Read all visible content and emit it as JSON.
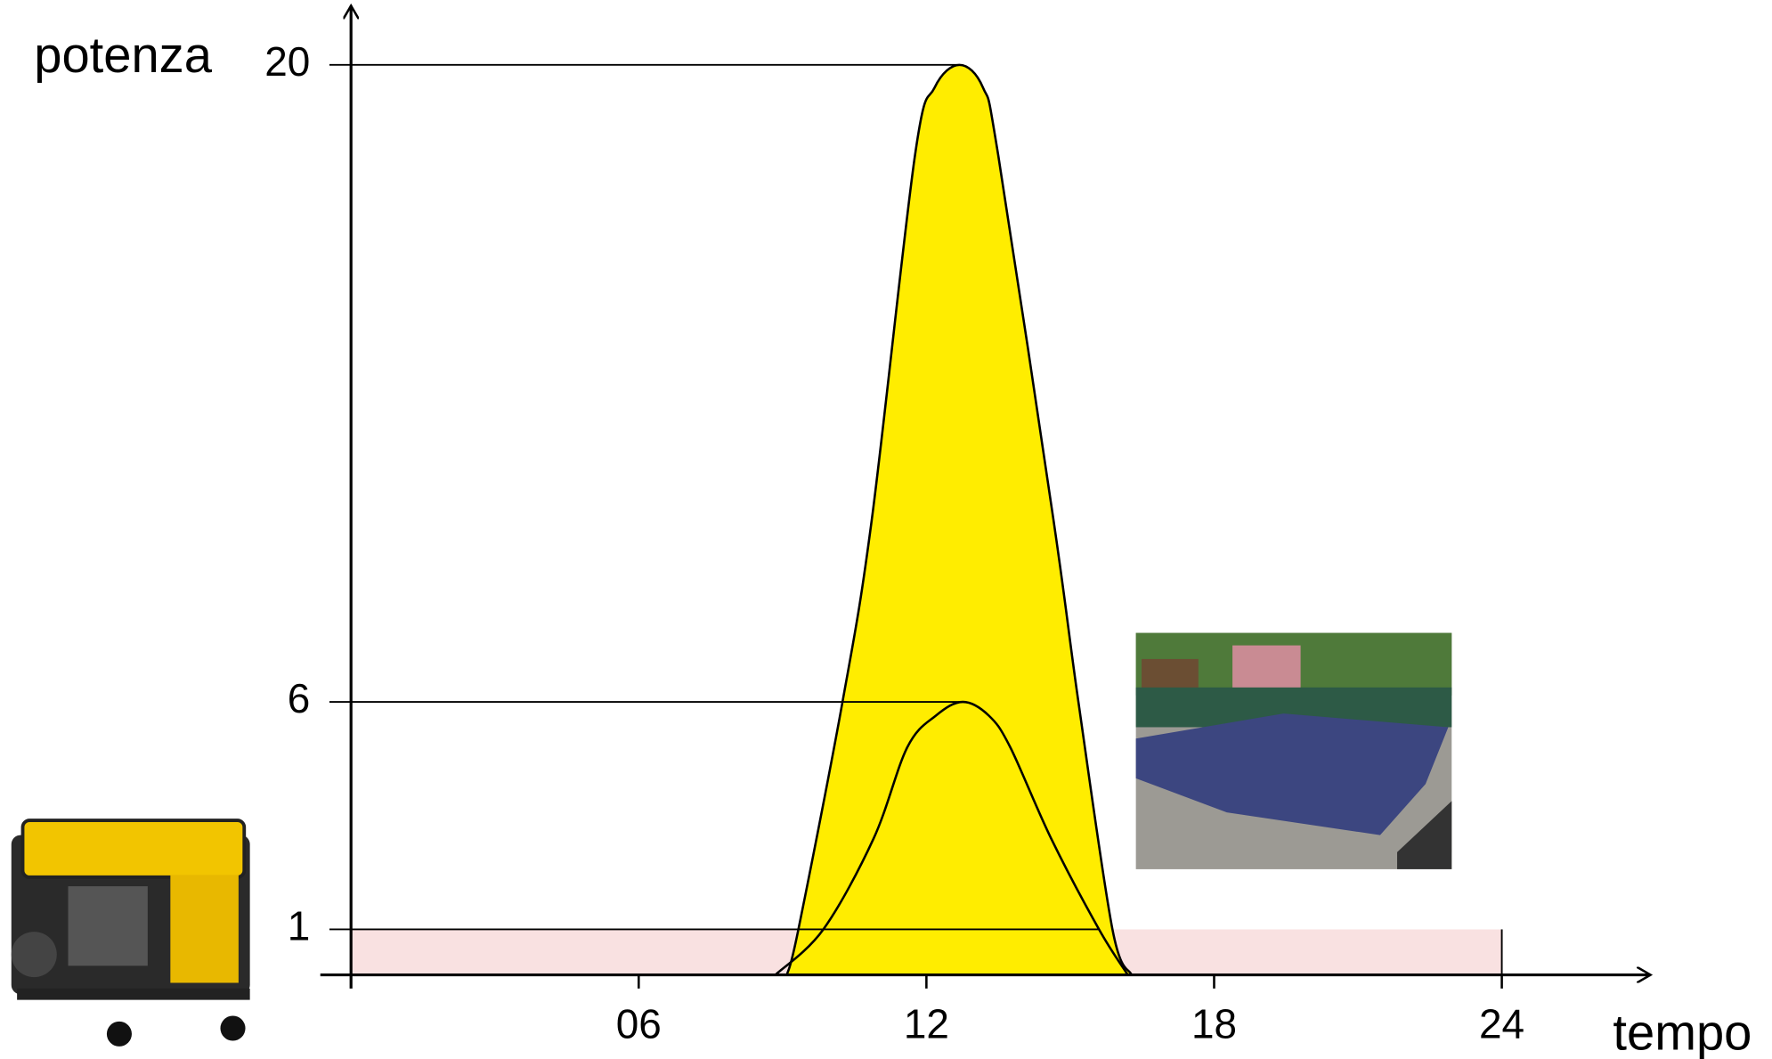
{
  "chart_data": {
    "type": "area",
    "y_label": "potenza",
    "x_label": "tempo",
    "xlim": [
      -0.64,
      27.1
    ],
    "ylim": [
      0,
      21.3
    ],
    "xticks": [
      {
        "value": 6,
        "label": "06"
      },
      12,
      18,
      24
    ],
    "yticks": [
      1,
      6,
      20
    ],
    "series": [
      {
        "name": "base",
        "color": "#f9e1e1",
        "x": [
          0,
          24
        ],
        "values": [
          1,
          1
        ]
      },
      {
        "name": "peak",
        "color": "#ffed00",
        "x": [
          9.09,
          9.33,
          10.25,
          10.86,
          11.76,
          12.17,
          12.69,
          13.18,
          13.5,
          14.65,
          15.17,
          15.88,
          16.28
        ],
        "values": [
          0,
          1,
          6,
          10,
          18,
          19.5,
          20,
          19.5,
          18,
          10,
          6,
          1,
          0
        ]
      },
      {
        "name": "low",
        "color": "none",
        "x": [
          8.85,
          9.85,
          10.9,
          11.6,
          12.2,
          12.76,
          13.3,
          13.75,
          14.6,
          15.6,
          16.2
        ],
        "values": [
          0,
          1,
          3,
          5,
          5.7,
          6,
          5.7,
          5,
          3,
          1,
          0
        ]
      }
    ]
  }
}
